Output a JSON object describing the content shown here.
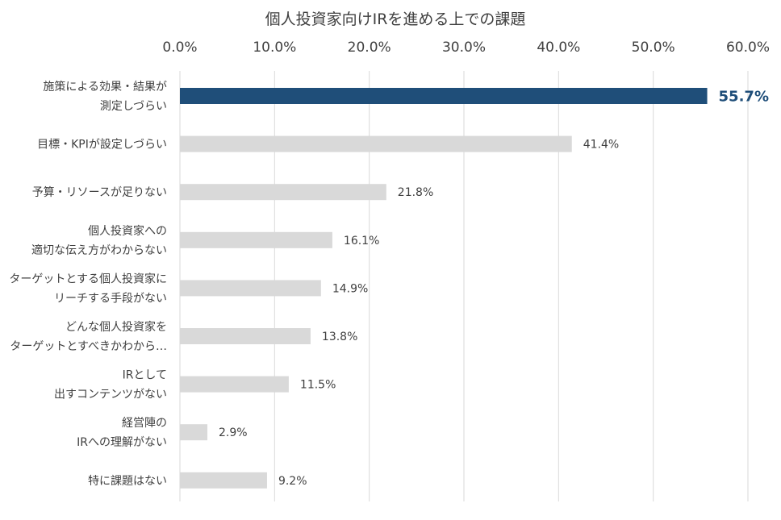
{
  "chart_data": {
    "type": "bar",
    "orientation": "horizontal",
    "title": "個人投資家向けIRを進める上での課題",
    "xlim": [
      0,
      60
    ],
    "x_ticks": [
      "0.0%",
      "10.0%",
      "20.0%",
      "30.0%",
      "40.0%",
      "50.0%",
      "60.0%"
    ],
    "x_tick_values": [
      0,
      10,
      20,
      30,
      40,
      50,
      60
    ],
    "axis_position": "top",
    "grid": true,
    "categories": [
      [
        "施策による効果・結果が",
        "測定しづらい"
      ],
      [
        "目標・KPIが設定しづらい"
      ],
      [
        "予算・リソースが足りない"
      ],
      [
        "個人投資家への",
        "適切な伝え方がわからない"
      ],
      [
        "ターゲットとする個人投資家に",
        "リーチする手段がない"
      ],
      [
        "どんな個人投資家を",
        "ターゲットとすべきかわから…"
      ],
      [
        "IRとして",
        "出すコンテンツがない"
      ],
      [
        "経営陣の",
        "IRへの理解がない"
      ],
      [
        "特に課題はない"
      ]
    ],
    "values": [
      55.7,
      41.4,
      21.8,
      16.1,
      14.9,
      13.8,
      11.5,
      2.9,
      9.2
    ],
    "value_labels": [
      "55.7%",
      "41.4%",
      "21.8%",
      "16.1%",
      "14.9%",
      "13.8%",
      "11.5%",
      "2.9%",
      "9.2%"
    ],
    "highlight_index": 0,
    "colors": {
      "highlight": "#1f4e79",
      "bar": "#d9d9d9",
      "grid": "#d9d9d9",
      "text": "#404040"
    }
  }
}
